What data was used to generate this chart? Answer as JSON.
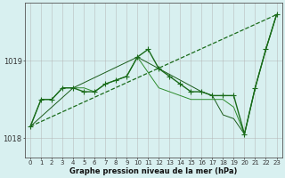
{
  "bg_color": "#d8f0f0",
  "grid_color": "#b0b0b0",
  "xlabel": "Graphe pression niveau de la mer (hPa)",
  "ylabel_ticks": [
    1018,
    1019
  ],
  "ylim": [
    1017.75,
    1019.75
  ],
  "xlim": [
    -0.5,
    23.5
  ],
  "xticks": [
    0,
    1,
    2,
    3,
    4,
    5,
    6,
    7,
    8,
    9,
    10,
    11,
    12,
    13,
    14,
    15,
    16,
    17,
    18,
    19,
    20,
    21,
    22,
    23
  ],
  "series": [
    {
      "x": [
        0,
        1,
        2,
        3,
        4,
        5,
        6,
        7,
        8,
        9,
        10,
        11,
        12,
        13,
        14,
        15,
        16,
        17,
        18,
        19,
        20,
        21,
        22,
        23
      ],
      "y": [
        1018.15,
        1018.5,
        1018.5,
        1018.65,
        1018.65,
        1018.6,
        1018.6,
        1018.7,
        1018.75,
        1018.8,
        1019.05,
        1019.15,
        1018.9,
        1018.8,
        1018.7,
        1018.6,
        1018.6,
        1018.55,
        1018.55,
        1018.55,
        1018.05,
        1018.65,
        1019.15,
        1019.6
      ],
      "style": "-",
      "marker": "+",
      "linewidth": 1.0,
      "markersize": 4,
      "color": "#1a6b1a",
      "zorder": 4
    },
    {
      "x": [
        0,
        23
      ],
      "y": [
        1018.15,
        1019.6
      ],
      "style": "--",
      "marker": null,
      "linewidth": 0.9,
      "markersize": 0,
      "color": "#1a6b1a",
      "zorder": 2
    },
    {
      "x": [
        0,
        1,
        2,
        3,
        4,
        5,
        6,
        7,
        8,
        9,
        10,
        11,
        12,
        13,
        14,
        15,
        16,
        17,
        18,
        19,
        20,
        21,
        22,
        23
      ],
      "y": [
        1018.15,
        1018.5,
        1018.5,
        1018.65,
        1018.65,
        1018.65,
        1018.6,
        1018.7,
        1018.75,
        1018.8,
        1019.05,
        1018.85,
        1018.65,
        1018.6,
        1018.55,
        1018.5,
        1018.5,
        1018.5,
        1018.5,
        1018.4,
        1018.05,
        1018.65,
        1019.15,
        1019.6
      ],
      "style": "-",
      "marker": null,
      "linewidth": 0.7,
      "markersize": 0,
      "color": "#2d8c2d",
      "zorder": 3
    },
    {
      "x": [
        0,
        4,
        10,
        16,
        17,
        18,
        19,
        20,
        21,
        22,
        23
      ],
      "y": [
        1018.15,
        1018.65,
        1019.05,
        1018.6,
        1018.55,
        1018.3,
        1018.25,
        1018.05,
        1018.65,
        1019.15,
        1019.6
      ],
      "style": "-",
      "marker": null,
      "linewidth": 0.7,
      "markersize": 0,
      "color": "#1a5c1a",
      "zorder": 2
    }
  ]
}
